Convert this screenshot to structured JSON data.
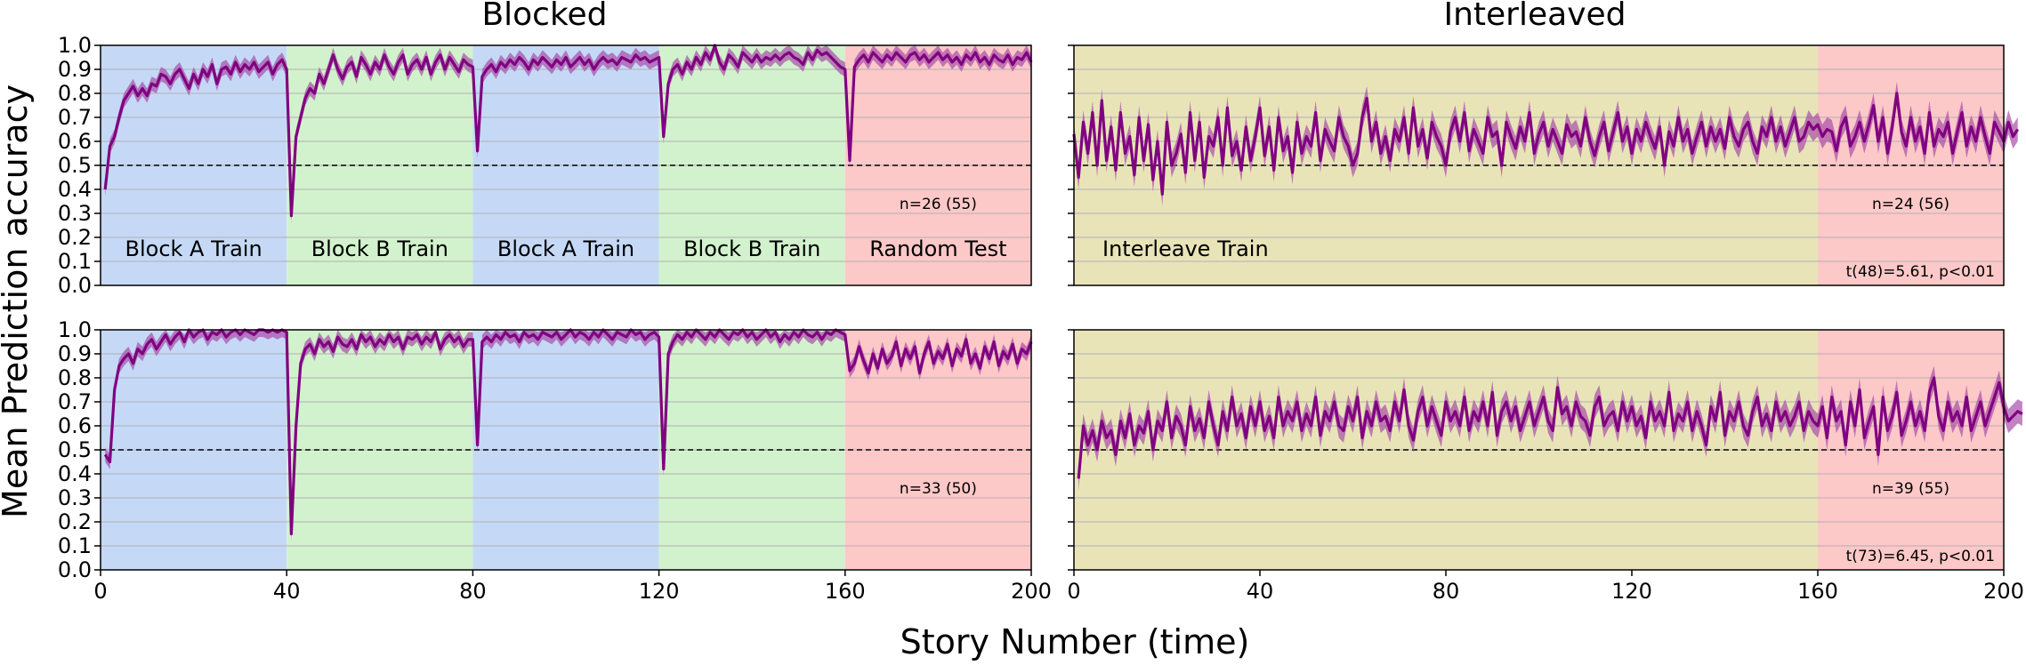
{
  "figure": {
    "col_titles": [
      "Blocked",
      "Interleaved"
    ],
    "ylabel": "Mean Prediction accuracy",
    "xlabel": "Story Number (time)"
  },
  "colors": {
    "line": "#800080",
    "band": "#a64fa6",
    "blockA": "#c5d9f7",
    "blockB": "#d2f2cd",
    "test": "#fdc8c8",
    "interleave": "#e9e4b8",
    "chance": "#000000",
    "grid": "#b0b0b0"
  },
  "chart_data": [
    {
      "type": "line",
      "panel": "top-blocked",
      "xlim": [
        0,
        200
      ],
      "ylim": [
        0,
        1.0
      ],
      "xticks": [],
      "yticks": [
        0.0,
        0.1,
        0.2,
        0.3,
        0.4,
        0.5,
        0.6,
        0.7,
        0.8,
        0.9,
        1.0
      ],
      "chance": 0.5,
      "phases": [
        {
          "label": "Block A Train",
          "start": 0,
          "end": 40,
          "color": "blockA"
        },
        {
          "label": "Block B Train",
          "start": 40,
          "end": 80,
          "color": "blockB"
        },
        {
          "label": "Block A Train",
          "start": 80,
          "end": 120,
          "color": "blockA"
        },
        {
          "label": "Block B Train",
          "start": 120,
          "end": 160,
          "color": "blockB"
        },
        {
          "label": "Random Test",
          "start": 160,
          "end": 200,
          "color": "test"
        }
      ],
      "annotations": [
        "n=26 (55)"
      ],
      "series": [
        {
          "x_start": 1,
          "band_width": 0.03,
          "values": [
            0.4,
            0.58,
            0.62,
            0.7,
            0.77,
            0.8,
            0.83,
            0.79,
            0.82,
            0.79,
            0.84,
            0.83,
            0.88,
            0.87,
            0.84,
            0.88,
            0.9,
            0.86,
            0.82,
            0.88,
            0.84,
            0.9,
            0.87,
            0.92,
            0.84,
            0.9,
            0.91,
            0.88,
            0.93,
            0.89,
            0.92,
            0.9,
            0.93,
            0.89,
            0.91,
            0.93,
            0.88,
            0.92,
            0.94,
            0.9,
            0.29,
            0.62,
            0.7,
            0.78,
            0.82,
            0.8,
            0.88,
            0.84,
            0.9,
            0.96,
            0.9,
            0.86,
            0.91,
            0.93,
            0.87,
            0.95,
            0.92,
            0.88,
            0.93,
            0.9,
            0.96,
            0.91,
            0.88,
            0.93,
            0.96,
            0.88,
            0.92,
            0.94,
            0.9,
            0.95,
            0.88,
            0.93,
            0.96,
            0.9,
            0.95,
            0.92,
            0.89,
            0.94,
            0.92,
            0.91,
            0.56,
            0.87,
            0.9,
            0.92,
            0.89,
            0.93,
            0.91,
            0.94,
            0.92,
            0.95,
            0.93,
            0.9,
            0.94,
            0.92,
            0.95,
            0.93,
            0.91,
            0.94,
            0.92,
            0.95,
            0.91,
            0.93,
            0.95,
            0.92,
            0.94,
            0.9,
            0.93,
            0.95,
            0.93,
            0.94,
            0.92,
            0.95,
            0.94,
            0.93,
            0.96,
            0.94,
            0.95,
            0.93,
            0.94,
            0.95,
            0.62,
            0.84,
            0.9,
            0.92,
            0.88,
            0.93,
            0.9,
            0.95,
            0.92,
            0.97,
            0.94,
            1.0,
            0.93,
            0.9,
            0.96,
            0.94,
            0.91,
            0.97,
            0.95,
            0.93,
            0.96,
            0.93,
            0.95,
            0.94,
            0.96,
            0.94,
            0.96,
            0.97,
            0.95,
            0.94,
            0.92,
            0.97,
            0.94,
            0.98,
            0.96,
            0.97,
            0.95,
            0.93,
            0.91,
            0.9,
            0.52,
            0.91,
            0.94,
            0.96,
            0.93,
            0.97,
            0.95,
            0.93,
            0.96,
            0.94,
            0.97,
            0.95,
            0.93,
            0.96,
            0.97,
            0.94,
            0.96,
            0.93,
            0.95,
            0.97,
            0.94,
            0.96,
            0.93,
            0.95,
            0.92,
            0.96,
            0.94,
            0.97,
            0.93,
            0.95,
            0.92,
            0.96,
            0.94,
            0.93,
            0.96,
            0.92,
            0.95,
            0.94,
            0.97,
            0.93
          ]
        }
      ]
    },
    {
      "type": "line",
      "panel": "top-interleaved",
      "xlim": [
        0,
        200
      ],
      "ylim": [
        0,
        1.0
      ],
      "xticks": [],
      "yticks": [],
      "chance": 0.5,
      "phases": [
        {
          "label": "Interleave Train",
          "start": 0,
          "end": 160,
          "color": "interleave"
        },
        {
          "label": "",
          "start": 160,
          "end": 200,
          "color": "test"
        }
      ],
      "annotations": [
        "n=24 (56)",
        "t(48)=5.61, p<0.01"
      ],
      "series": [
        {
          "x_start": 0,
          "band_width": 0.05,
          "values": [
            0.63,
            0.45,
            0.68,
            0.55,
            0.72,
            0.5,
            0.77,
            0.52,
            0.66,
            0.48,
            0.72,
            0.55,
            0.62,
            0.46,
            0.7,
            0.52,
            0.67,
            0.44,
            0.6,
            0.38,
            0.68,
            0.5,
            0.55,
            0.63,
            0.47,
            0.72,
            0.52,
            0.68,
            0.45,
            0.62,
            0.58,
            0.7,
            0.5,
            0.74,
            0.54,
            0.6,
            0.48,
            0.66,
            0.52,
            0.62,
            0.74,
            0.54,
            0.66,
            0.48,
            0.7,
            0.56,
            0.62,
            0.47,
            0.68,
            0.55,
            0.62,
            0.58,
            0.72,
            0.52,
            0.65,
            0.6,
            0.56,
            0.7,
            0.62,
            0.58,
            0.5,
            0.55,
            0.7,
            0.78,
            0.6,
            0.68,
            0.55,
            0.62,
            0.52,
            0.65,
            0.6,
            0.7,
            0.55,
            0.74,
            0.58,
            0.65,
            0.53,
            0.68,
            0.62,
            0.58,
            0.5,
            0.64,
            0.7,
            0.6,
            0.72,
            0.56,
            0.65,
            0.6,
            0.55,
            0.7,
            0.62,
            0.64,
            0.5,
            0.68,
            0.62,
            0.57,
            0.66,
            0.6,
            0.72,
            0.55,
            0.63,
            0.68,
            0.58,
            0.65,
            0.6,
            0.55,
            0.67,
            0.62,
            0.64,
            0.58,
            0.7,
            0.6,
            0.54,
            0.62,
            0.68,
            0.56,
            0.64,
            0.72,
            0.6,
            0.66,
            0.55,
            0.65,
            0.6,
            0.68,
            0.62,
            0.57,
            0.66,
            0.5,
            0.64,
            0.58,
            0.7,
            0.6,
            0.65,
            0.55,
            0.62,
            0.68,
            0.58,
            0.66,
            0.6,
            0.65,
            0.57,
            0.7,
            0.62,
            0.58,
            0.65,
            0.68,
            0.6,
            0.55,
            0.66,
            0.62,
            0.7,
            0.6,
            0.66,
            0.58,
            0.64,
            0.7,
            0.6,
            0.62,
            0.68,
            0.65,
            0.67,
            0.62,
            0.65,
            0.64,
            0.56,
            0.66,
            0.7,
            0.58,
            0.62,
            0.68,
            0.6,
            0.67,
            0.75,
            0.6,
            0.7,
            0.55,
            0.66,
            0.8,
            0.64,
            0.58,
            0.7,
            0.6,
            0.66,
            0.55,
            0.72,
            0.58,
            0.65,
            0.62,
            0.68,
            0.55,
            0.64,
            0.72,
            0.58,
            0.66,
            0.6,
            0.7,
            0.62,
            0.55,
            0.68,
            0.64,
            0.6,
            0.68,
            0.62,
            0.65
          ]
        }
      ]
    },
    {
      "type": "line",
      "panel": "bottom-blocked",
      "xlim": [
        0,
        200
      ],
      "ylim": [
        0,
        1.0
      ],
      "xticks": [
        0,
        40,
        80,
        120,
        160,
        200
      ],
      "yticks": [
        0.0,
        0.1,
        0.2,
        0.3,
        0.4,
        0.5,
        0.6,
        0.7,
        0.8,
        0.9,
        1.0
      ],
      "chance": 0.5,
      "phases": [
        {
          "label": "",
          "start": 0,
          "end": 40,
          "color": "blockA"
        },
        {
          "label": "",
          "start": 40,
          "end": 80,
          "color": "blockB"
        },
        {
          "label": "",
          "start": 80,
          "end": 120,
          "color": "blockA"
        },
        {
          "label": "",
          "start": 120,
          "end": 160,
          "color": "blockB"
        },
        {
          "label": "",
          "start": 160,
          "end": 200,
          "color": "test"
        }
      ],
      "annotations": [
        "n=33 (50)"
      ],
      "series": [
        {
          "x_start": 1,
          "band_width": 0.03,
          "values": [
            0.48,
            0.45,
            0.75,
            0.85,
            0.88,
            0.9,
            0.86,
            0.92,
            0.9,
            0.94,
            0.96,
            0.92,
            0.95,
            0.98,
            0.94,
            0.97,
            0.99,
            0.95,
            1.0,
            0.97,
            0.99,
            1.0,
            0.96,
            0.99,
            0.98,
            1.0,
            0.97,
            0.99,
            1.0,
            0.98,
            1.0,
            0.99,
            0.98,
            1.0,
            1.0,
            0.99,
            1.0,
            0.99,
            1.0,
            0.99,
            0.15,
            0.6,
            0.86,
            0.92,
            0.94,
            0.9,
            0.96,
            0.93,
            0.95,
            0.91,
            0.97,
            0.94,
            0.93,
            0.96,
            0.92,
            0.98,
            0.95,
            0.97,
            0.93,
            0.96,
            0.94,
            0.98,
            0.95,
            0.97,
            0.92,
            0.97,
            0.96,
            0.98,
            0.94,
            0.97,
            0.95,
            0.99,
            0.92,
            0.96,
            0.98,
            0.95,
            0.97,
            0.93,
            0.96,
            0.96,
            0.52,
            0.95,
            0.97,
            0.95,
            0.98,
            0.96,
            0.99,
            0.97,
            0.98,
            0.95,
            0.99,
            0.97,
            0.98,
            0.96,
            0.99,
            0.98,
            0.97,
            0.99,
            0.96,
            0.98,
            1.0,
            0.97,
            0.99,
            0.98,
            0.96,
            0.99,
            0.97,
            1.0,
            0.98,
            0.96,
            0.99,
            0.98,
            0.97,
            1.0,
            0.98,
            0.99,
            0.96,
            0.98,
            0.99,
            0.97,
            0.42,
            0.9,
            0.95,
            0.98,
            0.96,
            0.99,
            0.97,
            1.0,
            0.98,
            0.96,
            0.99,
            0.97,
            1.0,
            0.98,
            0.96,
            0.99,
            0.98,
            1.0,
            0.97,
            0.99,
            0.96,
            0.98,
            1.0,
            0.97,
            0.99,
            0.95,
            0.98,
            0.96,
            0.99,
            0.97,
            1.0,
            0.98,
            0.97,
            0.99,
            0.96,
            0.99,
            0.98,
            1.0,
            0.99,
            0.98,
            0.83,
            0.86,
            0.93,
            0.87,
            0.82,
            0.9,
            0.84,
            0.92,
            0.86,
            0.89,
            0.95,
            0.85,
            0.92,
            0.88,
            0.93,
            0.82,
            0.9,
            0.95,
            0.86,
            0.91,
            0.88,
            0.94,
            0.85,
            0.92,
            0.89,
            0.96,
            0.86,
            0.9,
            0.84,
            0.93,
            0.88,
            0.95,
            0.85,
            0.91,
            0.88,
            0.94,
            0.86,
            0.92,
            0.9,
            0.95
          ]
        }
      ]
    },
    {
      "type": "line",
      "panel": "bottom-interleaved",
      "xlim": [
        0,
        200
      ],
      "ylim": [
        0,
        1.0
      ],
      "xticks": [
        0,
        40,
        80,
        120,
        160,
        200
      ],
      "yticks": [],
      "chance": 0.5,
      "phases": [
        {
          "label": "",
          "start": 0,
          "end": 160,
          "color": "interleave"
        },
        {
          "label": "",
          "start": 160,
          "end": 200,
          "color": "test"
        }
      ],
      "annotations": [
        "n=39 (55)",
        "t(73)=6.45, p<0.01"
      ],
      "series": [
        {
          "x_start": 1,
          "band_width": 0.05,
          "values": [
            0.38,
            0.6,
            0.52,
            0.58,
            0.5,
            0.62,
            0.55,
            0.58,
            0.48,
            0.62,
            0.55,
            0.65,
            0.52,
            0.6,
            0.57,
            0.66,
            0.5,
            0.62,
            0.58,
            0.7,
            0.55,
            0.64,
            0.6,
            0.52,
            0.68,
            0.58,
            0.63,
            0.55,
            0.7,
            0.6,
            0.52,
            0.66,
            0.58,
            0.72,
            0.6,
            0.65,
            0.55,
            0.68,
            0.6,
            0.7,
            0.58,
            0.64,
            0.55,
            0.72,
            0.6,
            0.66,
            0.62,
            0.7,
            0.58,
            0.65,
            0.6,
            0.72,
            0.56,
            0.66,
            0.62,
            0.7,
            0.6,
            0.58,
            0.68,
            0.62,
            0.72,
            0.55,
            0.66,
            0.6,
            0.7,
            0.62,
            0.64,
            0.58,
            0.7,
            0.62,
            0.75,
            0.6,
            0.54,
            0.66,
            0.72,
            0.6,
            0.68,
            0.62,
            0.56,
            0.7,
            0.62,
            0.66,
            0.6,
            0.72,
            0.58,
            0.66,
            0.62,
            0.7,
            0.6,
            0.74,
            0.56,
            0.66,
            0.7,
            0.62,
            0.68,
            0.58,
            0.64,
            0.7,
            0.6,
            0.66,
            0.72,
            0.62,
            0.58,
            0.76,
            0.65,
            0.68,
            0.6,
            0.7,
            0.64,
            0.62,
            0.56,
            0.68,
            0.72,
            0.6,
            0.64,
            0.66,
            0.58,
            0.7,
            0.62,
            0.68,
            0.6,
            0.64,
            0.55,
            0.7,
            0.62,
            0.66,
            0.6,
            0.74,
            0.58,
            0.65,
            0.62,
            0.7,
            0.58,
            0.66,
            0.6,
            0.52,
            0.68,
            0.62,
            0.74,
            0.56,
            0.66,
            0.62,
            0.7,
            0.6,
            0.56,
            0.66,
            0.72,
            0.6,
            0.65,
            0.58,
            0.7,
            0.62,
            0.66,
            0.6,
            0.64,
            0.7,
            0.58,
            0.66,
            0.62,
            0.6,
            0.68,
            0.55,
            0.72,
            0.62,
            0.66,
            0.52,
            0.7,
            0.6,
            0.75,
            0.55,
            0.62,
            0.68,
            0.48,
            0.72,
            0.58,
            0.64,
            0.74,
            0.56,
            0.62,
            0.7,
            0.6,
            0.66,
            0.58,
            0.74,
            0.8,
            0.64,
            0.58,
            0.7,
            0.62,
            0.66,
            0.6,
            0.72,
            0.58,
            0.64,
            0.7,
            0.6,
            0.66,
            0.72,
            0.78,
            0.68,
            0.62,
            0.64,
            0.66,
            0.65
          ]
        }
      ]
    }
  ]
}
